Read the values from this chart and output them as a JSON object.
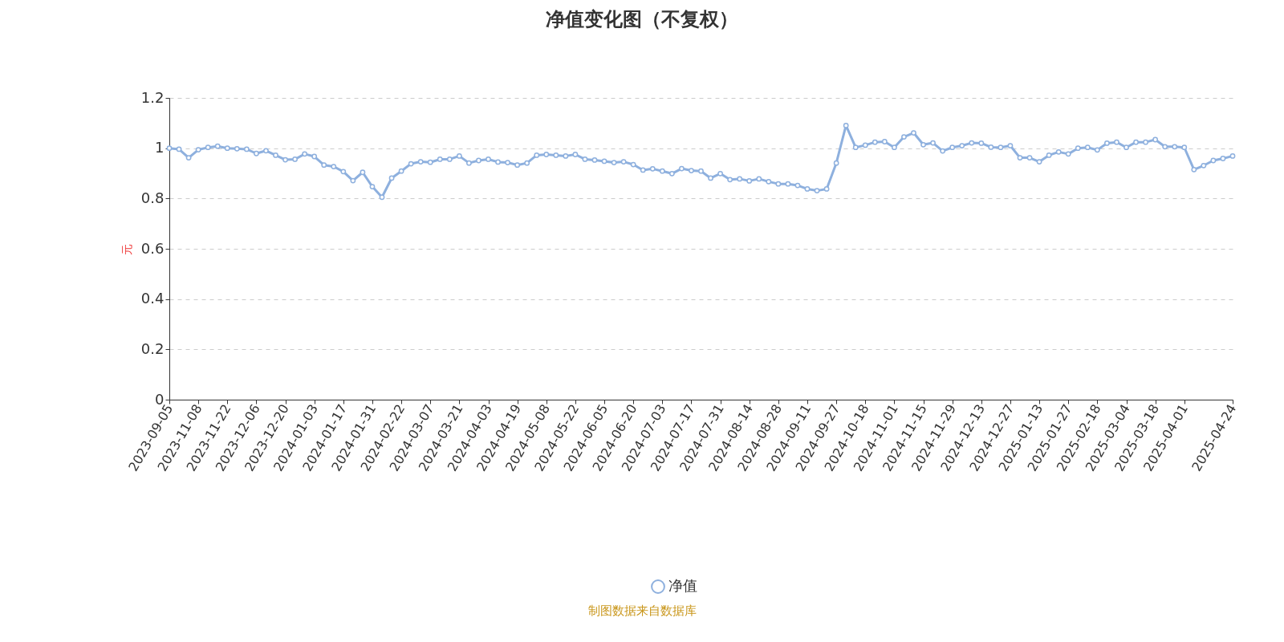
{
  "chart_data": {
    "type": "line",
    "title": "净值变化图（不复权）",
    "ylabel": "元",
    "categories": [
      "2023-09-05",
      null,
      null,
      "2023-11-08",
      null,
      null,
      "2023-11-22",
      null,
      null,
      "2023-12-06",
      null,
      null,
      "2023-12-20",
      null,
      null,
      "2024-01-03",
      null,
      null,
      "2024-01-17",
      null,
      null,
      "2024-01-31",
      null,
      null,
      "2024-02-22",
      null,
      null,
      "2024-03-07",
      null,
      null,
      "2024-03-21",
      null,
      null,
      "2024-04-03",
      null,
      null,
      "2024-04-19",
      null,
      null,
      "2024-05-08",
      null,
      null,
      "2024-05-22",
      null,
      null,
      "2024-06-05",
      null,
      null,
      "2024-06-20",
      null,
      null,
      "2024-07-03",
      null,
      null,
      "2024-07-17",
      null,
      null,
      "2024-07-31",
      null,
      null,
      "2024-08-14",
      null,
      null,
      "2024-08-28",
      null,
      null,
      "2024-09-11",
      null,
      null,
      "2024-09-27",
      null,
      null,
      "2024-10-18",
      null,
      null,
      "2024-11-01",
      null,
      null,
      "2024-11-15",
      null,
      null,
      "2024-11-29",
      null,
      null,
      "2024-12-13",
      null,
      null,
      "2024-12-27",
      null,
      null,
      "2025-01-13",
      null,
      null,
      "2025-01-27",
      null,
      null,
      "2025-02-18",
      null,
      null,
      "2025-03-04",
      null,
      null,
      "2025-03-18",
      null,
      null,
      "2025-04-01",
      null,
      null,
      null,
      null,
      "2025-04-24"
    ],
    "series": [
      {
        "name": "净值",
        "color": "#8eb0de",
        "values": [
          1.0,
          0.996,
          0.962,
          0.994,
          1.003,
          1.008,
          1.0,
          0.998,
          0.996,
          0.979,
          0.99,
          0.972,
          0.954,
          0.956,
          0.977,
          0.967,
          0.933,
          0.927,
          0.907,
          0.871,
          0.904,
          0.847,
          0.805,
          0.881,
          0.909,
          0.938,
          0.946,
          0.944,
          0.956,
          0.956,
          0.969,
          0.941,
          0.951,
          0.956,
          0.945,
          0.943,
          0.933,
          0.941,
          0.972,
          0.975,
          0.972,
          0.969,
          0.975,
          0.956,
          0.953,
          0.948,
          0.943,
          0.946,
          0.935,
          0.913,
          0.918,
          0.909,
          0.899,
          0.919,
          0.911,
          0.909,
          0.881,
          0.899,
          0.875,
          0.878,
          0.87,
          0.878,
          0.867,
          0.858,
          0.858,
          0.852,
          0.838,
          0.831,
          0.838,
          0.941,
          1.09,
          1.003,
          1.012,
          1.024,
          1.026,
          1.003,
          1.045,
          1.061,
          1.014,
          1.021,
          0.989,
          1.003,
          1.01,
          1.021,
          1.02,
          1.004,
          1.003,
          1.01,
          0.962,
          0.962,
          0.946,
          0.972,
          0.985,
          0.977,
          1.0,
          1.003,
          0.993,
          1.02,
          1.024,
          1.003,
          1.024,
          1.024,
          1.034,
          1.006,
          1.006,
          1.003,
          0.915,
          0.931,
          0.951,
          0.959,
          0.969
        ]
      }
    ],
    "ylim": [
      0,
      1.2
    ],
    "yticks": [
      0,
      0.2,
      0.4,
      0.6,
      0.8,
      1,
      1.2
    ],
    "grid": "y",
    "legend": "bottom",
    "marker": "circle",
    "line_style": "solid",
    "annotations": [
      "制图数据来自数据库"
    ]
  }
}
